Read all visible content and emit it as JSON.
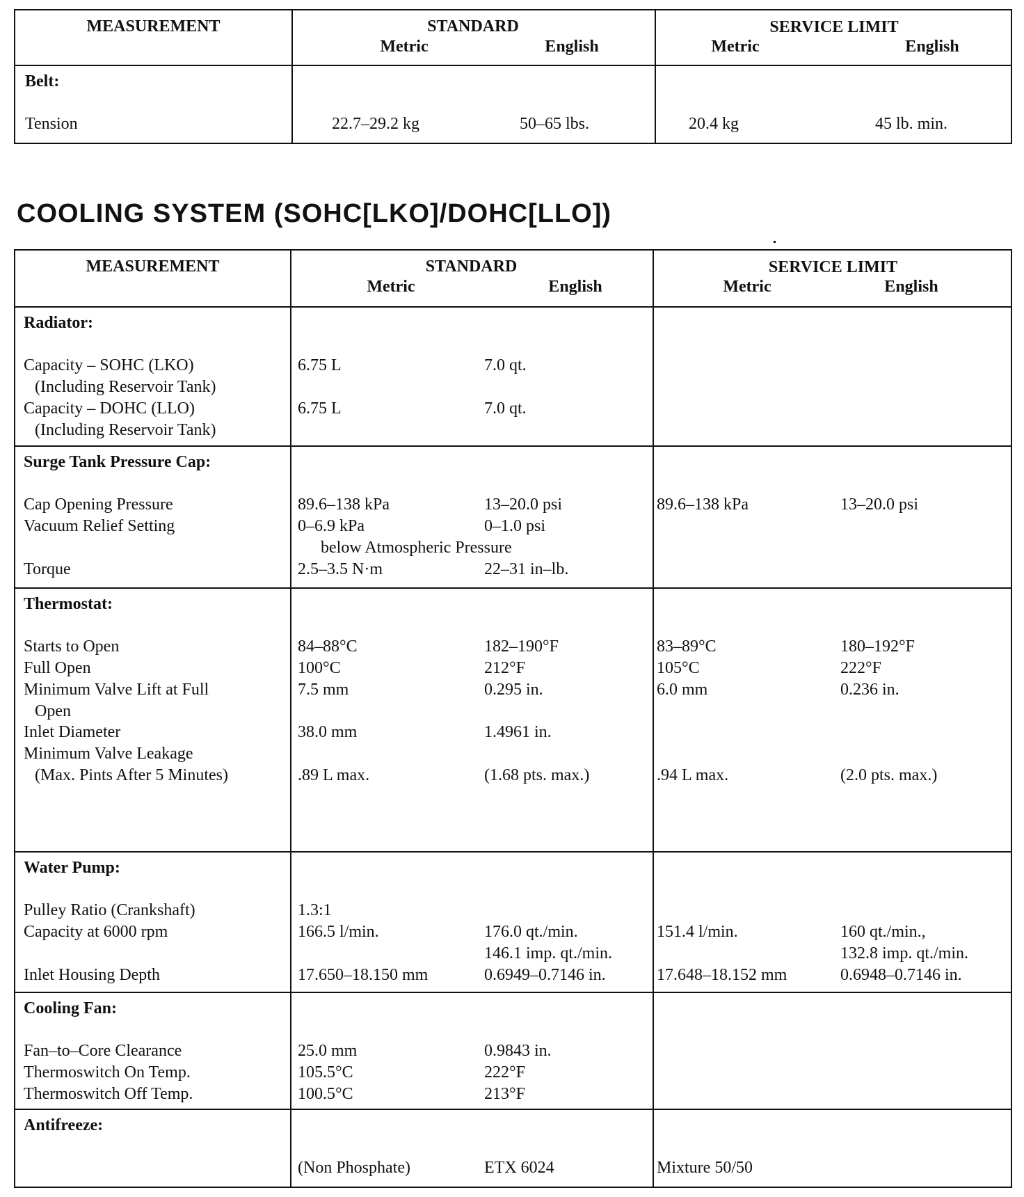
{
  "belt_table": {
    "header": {
      "measurement": "MEASUREMENT",
      "standard": "STANDARD",
      "service_limit": "SERVICE LIMIT",
      "metric": "Metric",
      "english": "English"
    },
    "sections": [
      {
        "title": "Belt:",
        "rows": [
          {
            "measurement": "Tension",
            "std_metric": "22.7–29.2 kg",
            "std_english": "50–65 lbs.",
            "svc_metric": "20.4 kg",
            "svc_english": "45 lb. min."
          }
        ]
      }
    ]
  },
  "cooling_title": "COOLING SYSTEM  (SOHC[LKO]/DOHC[LLO])",
  "cooling_table": {
    "header": {
      "measurement": "MEASUREMENT",
      "standard": "STANDARD",
      "service_limit": "SERVICE LIMIT",
      "metric": "Metric",
      "english": "English"
    },
    "sections": [
      {
        "title": "Radiator:",
        "rows": [
          {
            "measurement": "Capacity – SOHC (LKO)",
            "std_metric": "6.75 L",
            "std_english": "7.0 qt."
          },
          {
            "measurement": "(Including Reservoir Tank)",
            "indent": true
          },
          {
            "measurement": "Capacity – DOHC (LLO)",
            "std_metric": "6.75 L",
            "std_english": "7.0 qt."
          },
          {
            "measurement": "(Including Reservoir Tank)",
            "indent": true
          }
        ]
      },
      {
        "title": "Surge Tank Pressure Cap:",
        "rows": [
          {
            "measurement": "Cap Opening Pressure",
            "std_metric": "89.6–138 kPa",
            "std_english": " 13–20.0 psi",
            "svc_metric": "89.6–138 kPa",
            "svc_english": "13–20.0 psi"
          },
          {
            "measurement": "Vacuum Relief Setting",
            "std_metric": "0–6.9 kPa",
            "std_english": "0–1.0 psi"
          },
          {
            "std_span": "below Atmospheric Pressure"
          },
          {
            "measurement": "Torque",
            "std_metric": "2.5–3.5 N·m",
            "std_english": " 22–31 in–lb."
          }
        ]
      },
      {
        "title": "Thermostat:",
        "rows": [
          {
            "measurement": "Starts to Open",
            "std_metric": "84–88°C",
            "std_english": "182–190°F",
            "svc_metric": "83–89°C",
            "svc_english": "180–192°F"
          },
          {
            "measurement": "Full Open",
            "std_metric": "100°C",
            "std_english": "212°F",
            "svc_metric": "105°C",
            "svc_english": "222°F"
          },
          {
            "measurement": "Minimum Valve Lift at Full",
            "std_metric": "7.5 mm",
            "std_english": "0.295 in.",
            "svc_metric": "6.0 mm",
            "svc_english": "0.236 in."
          },
          {
            "measurement": "Open",
            "indent": true
          },
          {
            "measurement": "Inlet Diameter",
            "std_metric": "38.0 mm",
            "std_english": "1.4961 in."
          },
          {
            "measurement": "Minimum Valve Leakage"
          },
          {
            "measurement": "(Max. Pints After 5 Minutes)",
            "indent": true,
            "std_metric": ".89 L max.",
            "std_english": "(1.68 pts. max.)",
            "svc_metric": ".94 L max.",
            "svc_english": "(2.0 pts. max.)"
          }
        ]
      },
      {
        "title": "Water Pump:",
        "rows": [
          {
            "measurement": "Pulley Ratio (Crankshaft)",
            "std_metric": "1.3:1"
          },
          {
            "measurement": "Capacity at 6000 rpm",
            "std_metric": "166.5 l/min.",
            "std_english": "176.0 qt./min.",
            "svc_metric": "151.4 l/min.",
            "svc_english": "160 qt./min.,"
          },
          {
            "std_english": "146.1 imp. qt./min.",
            "svc_english": "132.8 imp. qt./min."
          },
          {
            "measurement": "Inlet Housing Depth",
            "std_metric": "17.650–18.150 mm",
            "std_english": "0.6949–0.7146 in.",
            "svc_metric": "17.648–18.152 mm",
            "svc_english": "0.6948–0.7146 in."
          }
        ]
      },
      {
        "title": "Cooling Fan:",
        "rows": [
          {
            "measurement": "Fan–to–Core Clearance",
            "std_metric": "25.0 mm",
            "std_english": "0.9843 in."
          },
          {
            "measurement": "Thermoswitch On Temp.",
            "std_metric": "105.5°C",
            "std_english": "222°F"
          },
          {
            "measurement": "Thermoswitch Off Temp.",
            "std_metric": "100.5°C",
            "std_english": "213°F"
          }
        ]
      },
      {
        "title": "Antifreeze:",
        "rows": [
          {
            "std_metric": "(Non Phosphate)",
            "std_english": "ETX 6024",
            "svc_metric": "Mixture 50/50"
          }
        ]
      }
    ]
  }
}
